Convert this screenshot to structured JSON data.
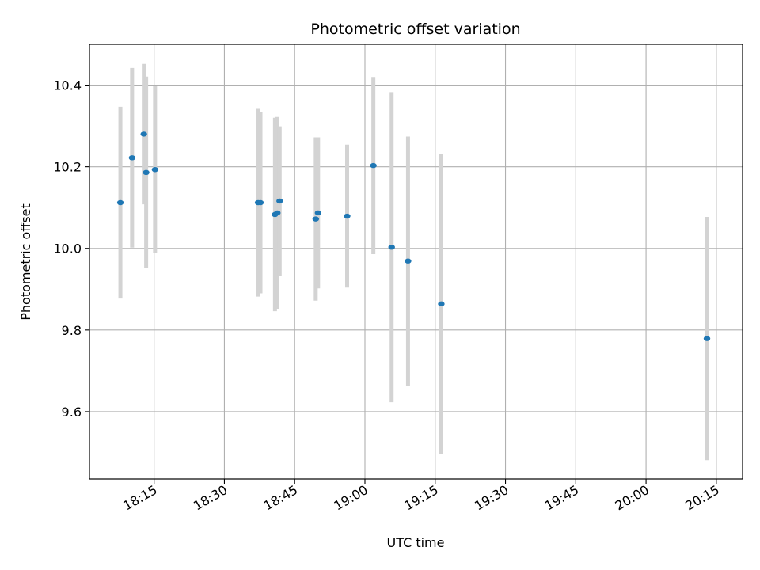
{
  "chart_data": {
    "type": "scatter",
    "title": "Photometric offset variation",
    "xlabel": "UTC time",
    "ylabel": "Photometric offset",
    "x_unit": "UTC time of day",
    "xlim": [
      "18:01.2",
      "20:20.6"
    ],
    "ylim": [
      9.435,
      10.5
    ],
    "grid": true,
    "x_tick_labels": [
      "18:15",
      "18:30",
      "18:45",
      "19:00",
      "19:15",
      "19:30",
      "19:45",
      "20:00",
      "20:15"
    ],
    "y_tick_labels": [
      "9.6",
      "9.8",
      "10.0",
      "10.2",
      "10.4"
    ],
    "y_ticks": [
      9.6,
      9.8,
      10.0,
      10.2,
      10.4
    ],
    "colors": {
      "point": "#1f77b4",
      "errorbar": "#d3d3d3",
      "grid": "#b0b0b0"
    },
    "points": [
      {
        "time": "18:07.8",
        "y": 10.112,
        "err": 0.235
      },
      {
        "time": "18:10.3",
        "y": 10.222,
        "err": 0.22
      },
      {
        "time": "18:12.8",
        "y": 10.28,
        "err": 0.172
      },
      {
        "time": "18:13.3",
        "y": 10.186,
        "err": 0.235
      },
      {
        "time": "18:15.2",
        "y": 10.193,
        "err": 0.205
      },
      {
        "time": "18:37.2",
        "y": 10.112,
        "err": 0.23
      },
      {
        "time": "18:37.7",
        "y": 10.112,
        "err": 0.222
      },
      {
        "time": "18:40.8",
        "y": 10.083,
        "err": 0.237
      },
      {
        "time": "18:41.3",
        "y": 10.087,
        "err": 0.235
      },
      {
        "time": "18:41.8",
        "y": 10.116,
        "err": 0.183
      },
      {
        "time": "18:49.5",
        "y": 10.072,
        "err": 0.2
      },
      {
        "time": "18:50.0",
        "y": 10.087,
        "err": 0.185
      },
      {
        "time": "18:56.2",
        "y": 10.079,
        "err": 0.175
      },
      {
        "time": "19:01.8",
        "y": 10.203,
        "err": 0.217
      },
      {
        "time": "19:05.7",
        "y": 10.003,
        "err": 0.38
      },
      {
        "time": "19:09.2",
        "y": 9.969,
        "err": 0.305
      },
      {
        "time": "19:16.3",
        "y": 9.864,
        "err": 0.367
      },
      {
        "time": "20:13.0",
        "y": 9.779,
        "err": 0.298
      }
    ]
  }
}
